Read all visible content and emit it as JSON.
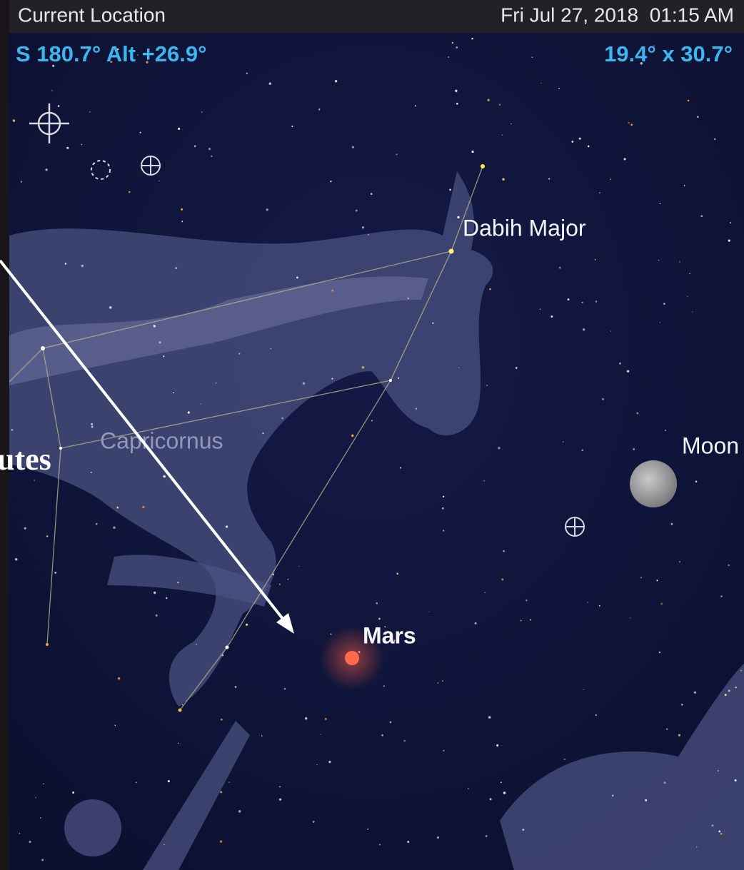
{
  "header": {
    "location": "Current Location",
    "datetime": "Fri Jul 27, 2018  01:15 AM"
  },
  "status": {
    "pointing": "S 180.7° Alt +26.9°",
    "fov": "19.4° x 30.7°"
  },
  "labels": {
    "dabih": "Dabih Major",
    "constellation": "Capricornus",
    "moon": "Moon",
    "mars": "Mars"
  },
  "overlay": {
    "text": "utes"
  }
}
